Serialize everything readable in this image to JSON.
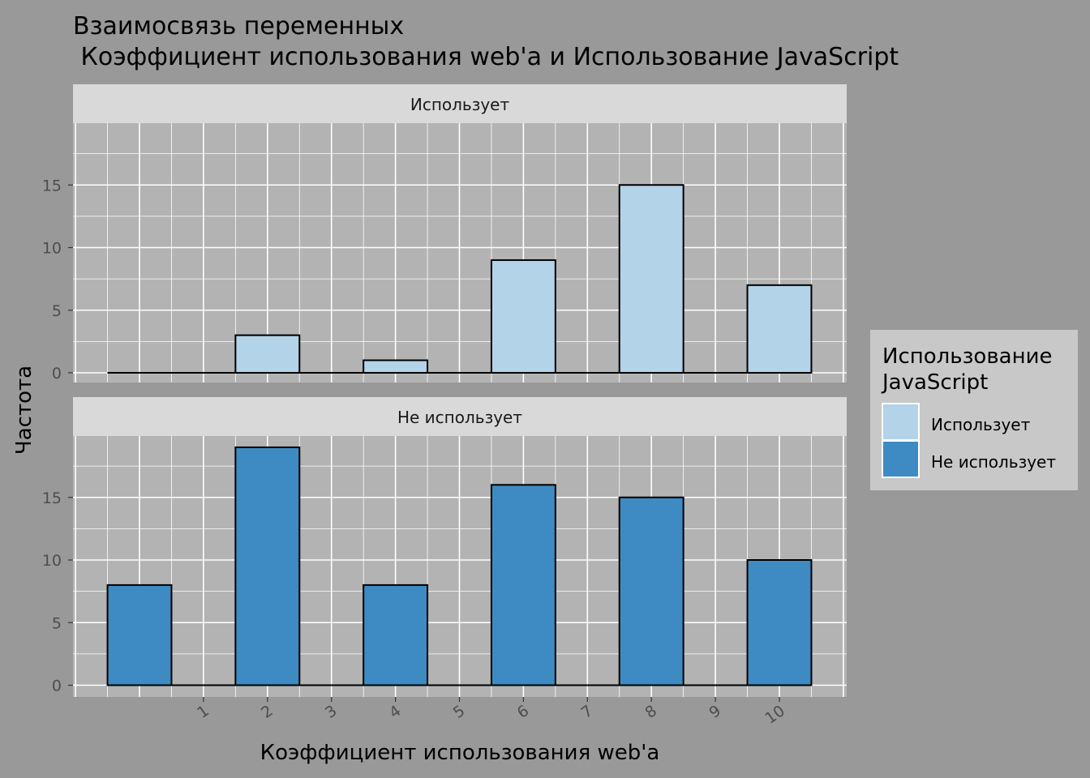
{
  "chart_data": {
    "type": "bar",
    "title_line1": "Взаимосвязь переменных",
    "title_line2": " Коэффициент использования web'a и Использование JavaScript",
    "xlabel": "Коэффициент использования web'a",
    "ylabel": "Частота",
    "x_ticks": [
      "1",
      "2",
      "3",
      "4",
      "5",
      "6",
      "7",
      "8",
      "9",
      "10"
    ],
    "y_ticks": [
      "0",
      "5",
      "10",
      "15"
    ],
    "categories": [
      "0",
      "2",
      "4",
      "6",
      "8",
      "10"
    ],
    "facets": [
      {
        "label": "Использует",
        "color": "#b3d3e8",
        "values": [
          0,
          3,
          1,
          9,
          15,
          7
        ]
      },
      {
        "label": "Не использует",
        "color": "#3e8bc4",
        "values": [
          8,
          19,
          8,
          16,
          15,
          10
        ]
      }
    ],
    "ylim": [
      0,
      20
    ],
    "xlim": [
      -1,
      11
    ],
    "grid": true,
    "legend": {
      "title_line1": "Использование",
      "title_line2": "JavaScript",
      "position": "right",
      "entries": [
        {
          "label": "Использует",
          "color": "#b3d3e8"
        },
        {
          "label": "Не использует",
          "color": "#3e8bc4"
        }
      ]
    }
  }
}
